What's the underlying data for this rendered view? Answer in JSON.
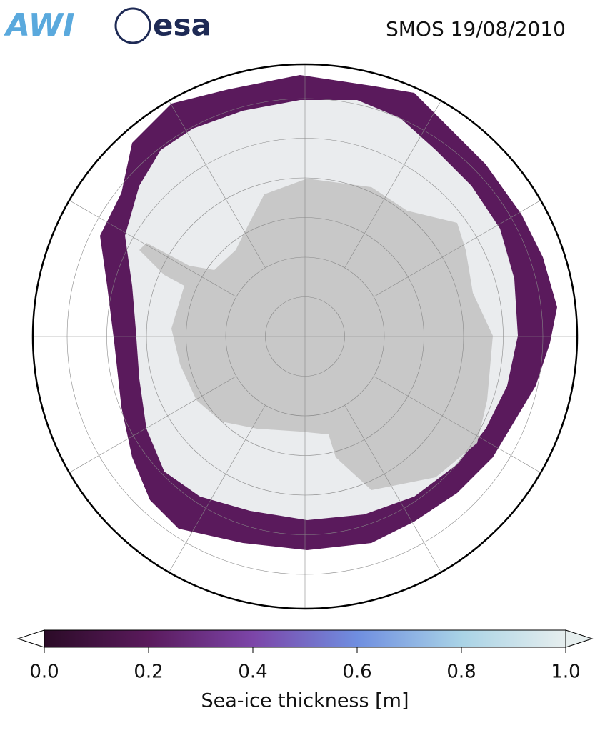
{
  "header": {
    "logos": [
      "AWI",
      "esa"
    ],
    "title": "SMOS 19/08/2010"
  },
  "colorbar": {
    "label": "Sea-ice thickness [m]",
    "lim": [
      0,
      1
    ],
    "ticks": [
      {
        "value": 0,
        "label": "0.0"
      },
      0.2,
      0.4,
      0.6,
      0.8,
      {
        "value": 1,
        "label": "1.0"
      }
    ],
    "colors": [
      "#2b0b27",
      "#5a1a5c",
      "#7c45a8",
      "#6f8ee0",
      "#a9d3e6",
      "#e6eeee"
    ]
  }
}
